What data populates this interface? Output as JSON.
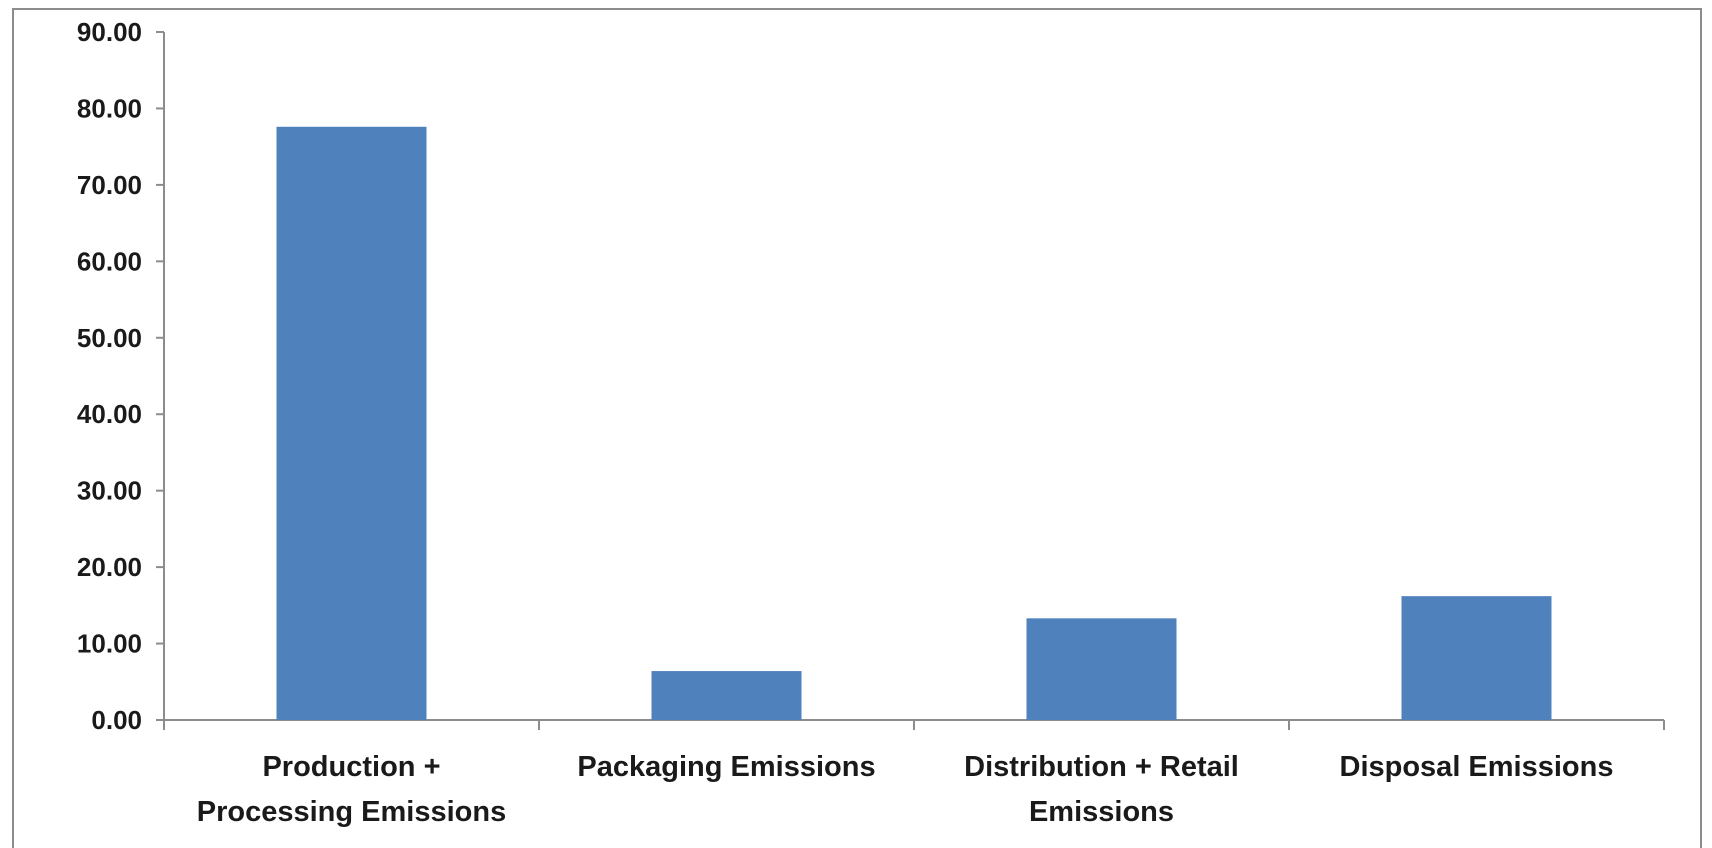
{
  "chart_data": {
    "type": "bar",
    "title": "",
    "xlabel": "",
    "ylabel": "",
    "categories": [
      [
        "Production +",
        "Processing Emissions"
      ],
      [
        "Packaging Emissions"
      ],
      [
        "Distribution + Retail",
        "Emissions"
      ],
      [
        "Disposal Emissions"
      ]
    ],
    "values": [
      77.6,
      6.4,
      13.3,
      16.2
    ],
    "ylim": [
      0,
      90
    ],
    "ytick_labels": [
      "0.00",
      "10.00",
      "20.00",
      "30.00",
      "40.00",
      "50.00",
      "60.00",
      "70.00",
      "80.00",
      "90.00"
    ],
    "grid": false,
    "legend": "none",
    "colors": {
      "bar": "#4f81bd",
      "axis": "#8c8c8c"
    }
  }
}
